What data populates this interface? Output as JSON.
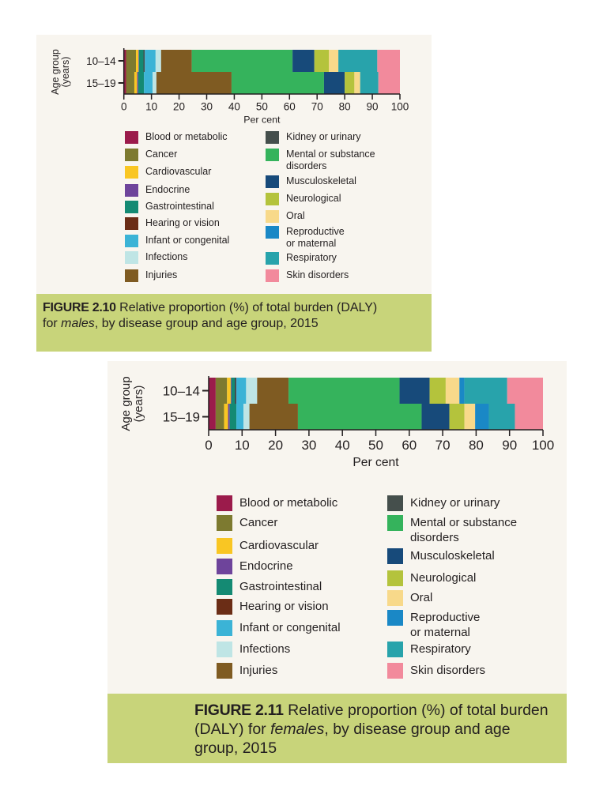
{
  "categories_legend": [
    {
      "name": "Blood or metabolic",
      "color": "#9b1b4b"
    },
    {
      "name": "Cancer",
      "color": "#7d7a30"
    },
    {
      "name": "Cardiovascular",
      "color": "#f9c623"
    },
    {
      "name": "Endocrine",
      "color": "#6e449b"
    },
    {
      "name": "Gastrointestinal",
      "color": "#148a73"
    },
    {
      "name": "Hearing or vision",
      "color": "#6b2d16"
    },
    {
      "name": "Infant or congenital",
      "color": "#3bb3d6"
    },
    {
      "name": "Infections",
      "color": "#bfe5e5"
    },
    {
      "name": "Injuries",
      "color": "#7f5b22"
    },
    {
      "name": "Kidney or urinary",
      "color": "#454f4c"
    },
    {
      "name": "Mental or substance\ndisorders",
      "color": "#35b35c"
    },
    {
      "name": "Musculoskeletal",
      "color": "#174a7a"
    },
    {
      "name": "Neurological",
      "color": "#b4c33c"
    },
    {
      "name": "Oral",
      "color": "#f8d98a"
    },
    {
      "name": "Reproductive\nor maternal",
      "color": "#1a88c6"
    },
    {
      "name": "Respiratory",
      "color": "#28a3ab"
    },
    {
      "name": "Skin disorders",
      "color": "#f28a9c"
    }
  ],
  "chart_data": [
    {
      "type": "bar",
      "orientation": "horizontal-stacked-100",
      "figure_label": "FIGURE 2.10",
      "title_before": " Relative proportion (%) of total burden (DALY) for ",
      "title_italic": "males",
      "title_after": ", by disease group and age group, 2015",
      "xlabel": "Per cent",
      "ylabel": "Age group\n(years)",
      "xlim": [
        0,
        100
      ],
      "xticks": [
        0,
        10,
        20,
        30,
        40,
        50,
        60,
        70,
        80,
        90,
        100
      ],
      "categories": [
        "10–14",
        "15–19"
      ],
      "series": [
        {
          "name": "Blood or metabolic",
          "values": [
            0.8,
            0.8
          ]
        },
        {
          "name": "Cancer",
          "values": [
            3.6,
            3.0
          ]
        },
        {
          "name": "Cardiovascular",
          "values": [
            0.9,
            1.0
          ]
        },
        {
          "name": "Endocrine",
          "values": [
            0.2,
            0.4
          ]
        },
        {
          "name": "Gastrointestinal",
          "values": [
            1.6,
            2.1
          ]
        },
        {
          "name": "Hearing or vision",
          "values": [
            0,
            0
          ]
        },
        {
          "name": "Kidney or urinary",
          "values": [
            0.5,
            0
          ]
        },
        {
          "name": "Infant or congenital",
          "values": [
            3.9,
            3.1
          ]
        },
        {
          "name": "Infections",
          "values": [
            2.0,
            1.4
          ]
        },
        {
          "name": "Injuries",
          "values": [
            11.1,
            27.2
          ]
        },
        {
          "name": "Mental or substance disorders",
          "values": [
            36.5,
            33.5
          ]
        },
        {
          "name": "Musculoskeletal",
          "values": [
            7.9,
            7.5
          ]
        },
        {
          "name": "Neurological",
          "values": [
            5.3,
            3.5
          ]
        },
        {
          "name": "Oral",
          "values": [
            3.4,
            2.1
          ]
        },
        {
          "name": "Reproductive or maternal",
          "values": [
            0,
            0
          ]
        },
        {
          "name": "Respiratory",
          "values": [
            14.1,
            6.6
          ]
        },
        {
          "name": "Skin disorders",
          "values": [
            8.2,
            7.8
          ]
        }
      ],
      "legend_position": "below"
    },
    {
      "type": "bar",
      "orientation": "horizontal-stacked-100",
      "figure_label": "FIGURE 2.11",
      "title_before": " Relative proportion (%) of total burden (DALY) for ",
      "title_italic": "females",
      "title_after": ", by disease group and age group, 2015",
      "xlabel": "Per cent",
      "ylabel": "Age group\n(years)",
      "xlim": [
        0,
        100
      ],
      "xticks": [
        0,
        10,
        20,
        30,
        40,
        50,
        60,
        70,
        80,
        90,
        100
      ],
      "categories": [
        "10–14",
        "15–19"
      ],
      "series": [
        {
          "name": "Blood or metabolic",
          "values": [
            2.1,
            2.1
          ]
        },
        {
          "name": "Cancer",
          "values": [
            3.4,
            2.5
          ]
        },
        {
          "name": "Cardiovascular",
          "values": [
            1.1,
            1.2
          ]
        },
        {
          "name": "Endocrine",
          "values": [
            0.2,
            0.5
          ]
        },
        {
          "name": "Gastrointestinal",
          "values": [
            1.0,
            2.0
          ]
        },
        {
          "name": "Hearing or vision",
          "values": [
            0,
            0
          ]
        },
        {
          "name": "Kidney or urinary",
          "values": [
            0.5,
            0
          ]
        },
        {
          "name": "Infant or congenital",
          "values": [
            2.9,
            2.1
          ]
        },
        {
          "name": "Infections",
          "values": [
            3.3,
            1.8
          ]
        },
        {
          "name": "Injuries",
          "values": [
            9.4,
            14.5
          ]
        },
        {
          "name": "Mental or substance disorders",
          "values": [
            33.2,
            37.0
          ]
        },
        {
          "name": "Musculoskeletal",
          "values": [
            9.0,
            8.3
          ]
        },
        {
          "name": "Neurological",
          "values": [
            4.8,
            4.5
          ]
        },
        {
          "name": "Oral",
          "values": [
            4.1,
            3.2
          ]
        },
        {
          "name": "Reproductive or maternal",
          "values": [
            1.5,
            4.1
          ]
        },
        {
          "name": "Respiratory",
          "values": [
            12.8,
            7.8
          ]
        },
        {
          "name": "Skin disorders",
          "values": [
            10.7,
            8.4
          ]
        }
      ],
      "legend_position": "below"
    }
  ]
}
